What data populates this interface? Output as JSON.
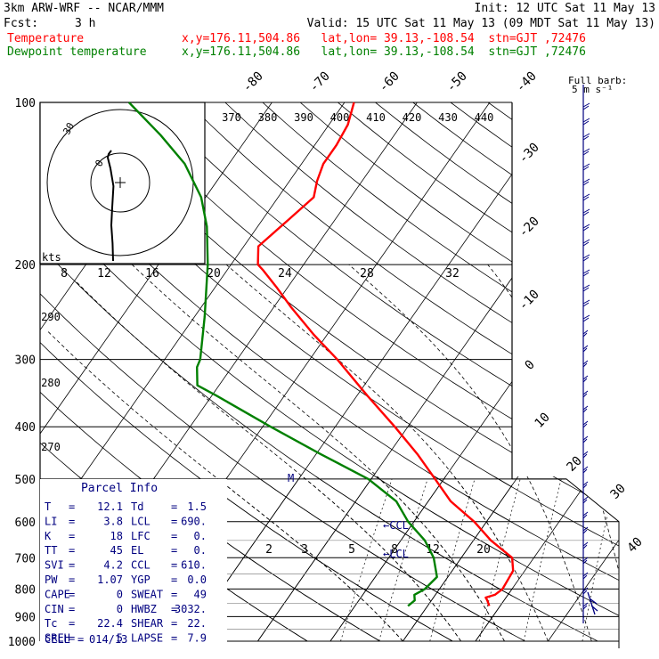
{
  "header": {
    "model_line": "3km ARW-WRF -- NCAR/MMM",
    "init_line": "Init: 12 UTC Sat 11 May 13",
    "fcst_label": "Fcst:",
    "fcst_value": "3 h",
    "valid_line": "Valid: 15 UTC Sat 11 May 13 (09 MDT Sat 11 May 13)",
    "series": [
      {
        "name": "Temperature",
        "info": "x,y=176.11,504.86   lat,lon= 39.13,-108.54  stn=GJT ,72476",
        "color": "#ff0000"
      },
      {
        "name": "Dewpoint temperature",
        "info": "x,y=176.11,504.86   lat,lon= 39.13,-108.54  stn=GJT ,72476",
        "color": "#008000"
      }
    ]
  },
  "chart_data": {
    "type": "line",
    "chart_kind": "skew-T log-P sounding",
    "y_axis": {
      "scale": "log",
      "ylim": [
        1000,
        100
      ],
      "ticks": [
        100,
        200,
        300,
        400,
        500,
        600,
        700,
        800,
        900,
        1000
      ]
    },
    "isotherm_labels": [
      -80,
      -70,
      -60,
      -50,
      -40,
      -30,
      -20,
      -10,
      0,
      10,
      20,
      30,
      40
    ],
    "theta_labels": [
      370,
      380,
      390,
      400,
      410,
      420,
      430,
      440
    ],
    "theta_labels_left": [
      290,
      280,
      270
    ],
    "mixing_ratio_labels": [
      "2",
      "3",
      "5",
      "8",
      "12",
      "20"
    ],
    "series": [
      {
        "name": "Temperature",
        "color": "#ff0000",
        "points": [
          {
            "p": 860,
            "t": 8.5
          },
          {
            "p": 840,
            "t": 7.7
          },
          {
            "p": 830,
            "t": 7.2
          },
          {
            "p": 820,
            "t": 8.2
          },
          {
            "p": 800,
            "t": 8.7
          },
          {
            "p": 780,
            "t": 8.6
          },
          {
            "p": 740,
            "t": 8.4
          },
          {
            "p": 700,
            "t": 7.0
          },
          {
            "p": 650,
            "t": 2.4
          },
          {
            "p": 600,
            "t": -1.7
          },
          {
            "p": 550,
            "t": -6.9
          },
          {
            "p": 500,
            "t": -11.2
          },
          {
            "p": 450,
            "t": -16.0
          },
          {
            "p": 400,
            "t": -21.8
          },
          {
            "p": 350,
            "t": -28.6
          },
          {
            "p": 300,
            "t": -36.2
          },
          {
            "p": 270,
            "t": -41.8
          },
          {
            "p": 240,
            "t": -47.6
          },
          {
            "p": 220,
            "t": -51.6
          },
          {
            "p": 205,
            "t": -55.0
          },
          {
            "p": 200,
            "t": -56.3
          },
          {
            "p": 185,
            "t": -58.0
          },
          {
            "p": 165,
            "t": -56.4
          },
          {
            "p": 150,
            "t": -55.1
          },
          {
            "p": 140,
            "t": -56.2
          },
          {
            "p": 130,
            "t": -57.0
          },
          {
            "p": 120,
            "t": -57.0
          },
          {
            "p": 110,
            "t": -57.4
          },
          {
            "p": 100,
            "t": -58.7
          }
        ]
      },
      {
        "name": "Dewpoint temperature",
        "color": "#008000",
        "points": [
          {
            "p": 860,
            "t": -2.7
          },
          {
            "p": 840,
            "t": -2.3
          },
          {
            "p": 820,
            "t": -2.9
          },
          {
            "p": 800,
            "t": -2.0
          },
          {
            "p": 760,
            "t": -1.5
          },
          {
            "p": 700,
            "t": -3.8
          },
          {
            "p": 650,
            "t": -6.7
          },
          {
            "p": 600,
            "t": -10.8
          },
          {
            "p": 550,
            "t": -14.4
          },
          {
            "p": 500,
            "t": -20.4
          },
          {
            "p": 450,
            "t": -29.3
          },
          {
            "p": 400,
            "t": -38.9
          },
          {
            "p": 350,
            "t": -49.4
          },
          {
            "p": 335,
            "t": -53.0
          },
          {
            "p": 310,
            "t": -54.8
          },
          {
            "p": 300,
            "t": -55.1
          },
          {
            "p": 250,
            "t": -58.6
          },
          {
            "p": 200,
            "t": -63.2
          },
          {
            "p": 170,
            "t": -67.0
          },
          {
            "p": 150,
            "t": -70.6
          },
          {
            "p": 130,
            "t": -76.1
          },
          {
            "p": 115,
            "t": -82.2
          },
          {
            "p": 100,
            "t": -89.7
          }
        ]
      }
    ],
    "level_markers": [
      "M",
      "←CCL",
      "←LCL"
    ]
  },
  "hodograph": {
    "units_label": "kts",
    "speed_labels": [
      "8",
      "12",
      "16",
      "20",
      "24",
      "28",
      "32"
    ],
    "ring_label": "30",
    "hodo_points": [
      [
        -0.4,
        -1.1
      ],
      [
        -0.43,
        -0.85
      ],
      [
        -0.5,
        -0.6
      ],
      [
        -0.45,
        -0.35
      ],
      [
        -0.38,
        -0.05
      ],
      [
        -0.55,
        0.2
      ],
      [
        -0.7,
        0.35
      ],
      [
        -0.65,
        0.4
      ],
      [
        -0.5,
        0.45
      ]
    ]
  },
  "wind_column": {
    "title_line1": "Full barb:",
    "title_line2": "5 m s⁻¹"
  },
  "parcel_info": {
    "title": "Parcel Info",
    "rows": [
      [
        "T",
        "12.1",
        "Td",
        "1.5"
      ],
      [
        "LI",
        "3.8",
        "LCL",
        "690."
      ],
      [
        "K",
        "18",
        "LFC",
        "0."
      ],
      [
        "TT",
        "45",
        "EL",
        "0."
      ],
      [
        "SVI",
        "4.2",
        "CCL",
        "610."
      ],
      [
        "PW",
        "1.07",
        "YGP",
        "0.0"
      ],
      [
        "CAPE",
        "0",
        "SWEAT",
        "49"
      ],
      [
        "CIN",
        "0",
        "HWBZ",
        "3032."
      ],
      [
        "Tc",
        "22.4",
        "SHEAR",
        "22."
      ],
      [
        "SREH",
        "5",
        "LAPSE",
        "7.9"
      ]
    ],
    "cell_label": "CELL",
    "cell_value": "014/13"
  },
  "colors": {
    "temperature": "#ff0000",
    "dewpoint": "#008000",
    "info_blue": "#000080",
    "grid": "#000000"
  }
}
